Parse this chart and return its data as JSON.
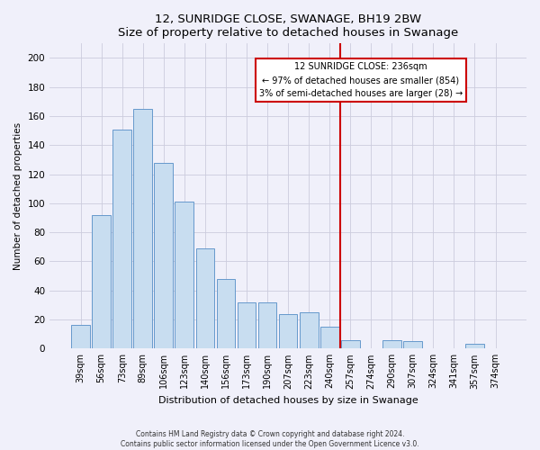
{
  "title": "12, SUNRIDGE CLOSE, SWANAGE, BH19 2BW",
  "subtitle": "Size of property relative to detached houses in Swanage",
  "xlabel": "Distribution of detached houses by size in Swanage",
  "ylabel": "Number of detached properties",
  "categories": [
    "39sqm",
    "56sqm",
    "73sqm",
    "89sqm",
    "106sqm",
    "123sqm",
    "140sqm",
    "156sqm",
    "173sqm",
    "190sqm",
    "207sqm",
    "223sqm",
    "240sqm",
    "257sqm",
    "274sqm",
    "290sqm",
    "307sqm",
    "324sqm",
    "341sqm",
    "357sqm",
    "374sqm"
  ],
  "values": [
    16,
    92,
    151,
    165,
    128,
    101,
    69,
    48,
    32,
    32,
    24,
    25,
    15,
    6,
    0,
    6,
    5,
    0,
    0,
    3,
    0
  ],
  "bar_color": "#c8ddf0",
  "bar_edge_color": "#6699cc",
  "vline_color": "#cc0000",
  "annotation_title": "12 SUNRIDGE CLOSE: 236sqm",
  "annotation_line1": "← 97% of detached houses are smaller (854)",
  "annotation_line2": "3% of semi-detached houses are larger (28) →",
  "ylim": [
    0,
    210
  ],
  "yticks": [
    0,
    20,
    40,
    60,
    80,
    100,
    120,
    140,
    160,
    180,
    200
  ],
  "footer_line1": "Contains HM Land Registry data © Crown copyright and database right 2024.",
  "footer_line2": "Contains public sector information licensed under the Open Government Licence v3.0.",
  "bg_color": "#f0f0fa",
  "grid_color": "#ccccdd"
}
